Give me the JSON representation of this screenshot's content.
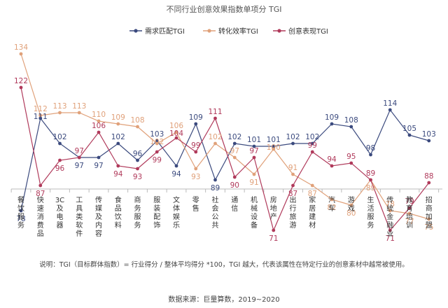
{
  "chart_data": {
    "type": "line",
    "title": "不同行业创意效果指数单项分 TGI",
    "categories": [
      "餐饮服务",
      "快速消费品",
      "3C及电器",
      "工具类软件",
      "传媒及内容",
      "食品饮料",
      "商务服务",
      "服装配饰",
      "文体娱乐",
      "零售",
      "社会公共",
      "通信",
      "机械设备",
      "房地产",
      "出行旅游",
      "家居建材",
      "汽车",
      "游戏",
      "生活服务",
      "传统金融业",
      "教育培训",
      "招商加盟"
    ],
    "series": [
      {
        "name": "需求匹配TGI",
        "color": "#3b4a7e",
        "values": [
          78,
          111,
          102,
          97,
          97,
          102,
          96,
          103,
          94,
          109,
          89,
          102,
          101,
          101,
          102,
          102,
          109,
          108,
          98,
          114,
          105,
          103
        ]
      },
      {
        "name": "转化效率TGI",
        "color": "#e0a17a",
        "values": [
          134,
          112,
          113,
          113,
          110,
          109,
          108,
          102,
          106,
          93,
          102,
          97,
          91,
          100,
          91,
          87,
          82,
          80,
          89,
          78,
          77,
          75
        ]
      },
      {
        "name": "创意表现TGI",
        "color": "#b03a5b",
        "values": [
          122,
          87,
          96,
          97,
          106,
          94,
          93,
          99,
          104,
          99,
          111,
          90,
          97,
          71,
          87,
          99,
          94,
          95,
          89,
          71,
          79,
          88
        ]
      }
    ],
    "ylim": [
      60,
      140
    ],
    "grid": false,
    "legend_position": "top-center"
  },
  "note": "说明：TGI（目标群体指数）= 行业得分 / 整体平均得分 *100，TGI 越大，代表该属性在特定行业的创意素材中越常被使用。",
  "source": "数据来源：巨量算数，2019~2020"
}
